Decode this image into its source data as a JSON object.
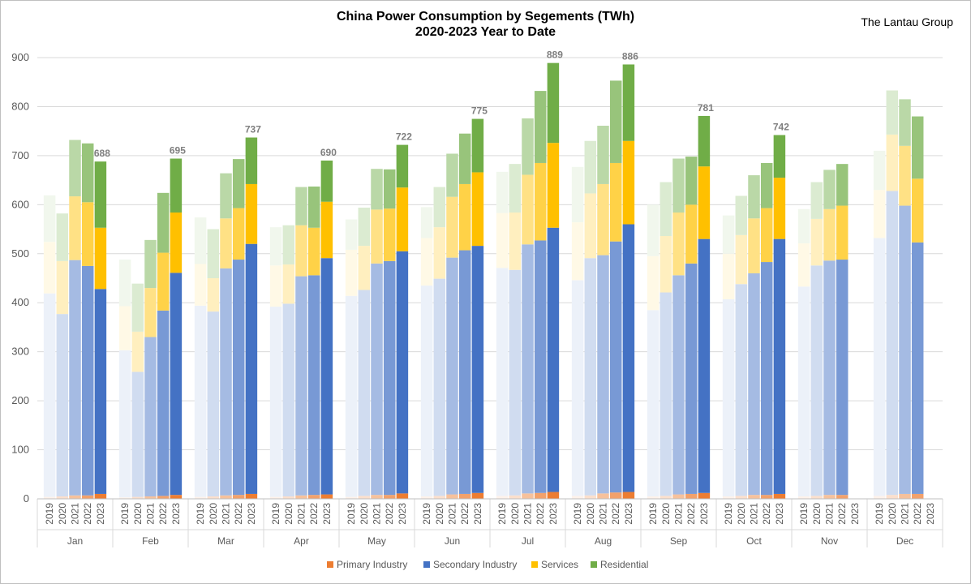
{
  "source": "The Lantau Group",
  "chart_data": {
    "type": "bar",
    "stacked": true,
    "title": "China Power Consumption by Segements (TWh)",
    "subtitle": "2020-2023 Year to Date",
    "ylim": [
      0,
      900
    ],
    "yticks": [
      "0",
      "100",
      "200",
      "300",
      "400",
      "500",
      "600",
      "700",
      "800",
      "900"
    ],
    "years": [
      "2019",
      "2020",
      "2021",
      "2022",
      "2023"
    ],
    "months": [
      "Jan",
      "Feb",
      "Mar",
      "Apr",
      "May",
      "Jun",
      "Jul",
      "Aug",
      "Sep",
      "Oct",
      "Nov",
      "Dec"
    ],
    "legend_position": "bottom",
    "series": [
      {
        "name": "Primary Industry",
        "color": "#ED7D31"
      },
      {
        "name": "Secondary Industry",
        "color": "#4472C4"
      },
      {
        "name": "Services",
        "color": "#FFC000"
      },
      {
        "name": "Residential",
        "color": "#70AD47"
      }
    ],
    "values": {
      "Jan": [
        [
          4,
          415,
          105,
          95
        ],
        [
          5,
          372,
          108,
          97
        ],
        [
          7,
          480,
          130,
          115
        ],
        [
          7,
          468,
          130,
          120
        ],
        [
          10,
          418,
          125,
          135
        ]
      ],
      "Feb": [
        [
          3,
          300,
          90,
          95
        ],
        [
          4,
          255,
          82,
          98
        ],
        [
          5,
          325,
          100,
          98
        ],
        [
          6,
          378,
          118,
          122
        ],
        [
          8,
          453,
          123,
          110
        ]
      ],
      "Mar": [
        [
          4,
          390,
          85,
          95
        ],
        [
          5,
          377,
          68,
          100
        ],
        [
          7,
          463,
          102,
          92
        ],
        [
          8,
          480,
          105,
          100
        ],
        [
          10,
          510,
          122,
          95
        ]
      ],
      "Apr": [
        [
          4,
          388,
          84,
          78
        ],
        [
          5,
          393,
          80,
          80
        ],
        [
          7,
          447,
          104,
          78
        ],
        [
          8,
          448,
          97,
          84
        ],
        [
          9,
          482,
          115,
          84
        ]
      ],
      "May": [
        [
          4,
          410,
          94,
          62
        ],
        [
          6,
          420,
          90,
          78
        ],
        [
          8,
          472,
          110,
          83
        ],
        [
          8,
          477,
          107,
          80
        ],
        [
          11,
          494,
          130,
          87
        ]
      ],
      "Jun": [
        [
          5,
          430,
          97,
          63
        ],
        [
          6,
          443,
          105,
          82
        ],
        [
          9,
          483,
          124,
          88
        ],
        [
          10,
          497,
          135,
          103
        ],
        [
          12,
          504,
          150,
          109
        ]
      ],
      "Jul": [
        [
          6,
          465,
          112,
          84
        ],
        [
          7,
          460,
          117,
          99
        ],
        [
          11,
          508,
          142,
          115
        ],
        [
          12,
          515,
          158,
          147
        ],
        [
          14,
          539,
          173,
          163
        ]
      ],
      "Aug": [
        [
          6,
          440,
          118,
          113
        ],
        [
          7,
          484,
          132,
          107
        ],
        [
          11,
          486,
          145,
          119
        ],
        [
          13,
          512,
          160,
          168
        ],
        [
          14,
          546,
          170,
          156
        ]
      ],
      "Sep": [
        [
          5,
          380,
          110,
          105
        ],
        [
          6,
          415,
          115,
          110
        ],
        [
          9,
          447,
          128,
          110
        ],
        [
          10,
          470,
          120,
          98
        ],
        [
          12,
          518,
          148,
          103
        ]
      ],
      "Oct": [
        [
          5,
          402,
          93,
          78
        ],
        [
          6,
          432,
          100,
          80
        ],
        [
          8,
          452,
          112,
          88
        ],
        [
          8,
          475,
          110,
          92
        ],
        [
          10,
          520,
          125,
          87
        ]
      ],
      "Nov": [
        [
          5,
          428,
          88,
          70
        ],
        [
          6,
          470,
          95,
          75
        ],
        [
          8,
          478,
          105,
          80
        ],
        [
          8,
          480,
          110,
          85
        ]
      ],
      "Dec": [
        [
          6,
          526,
          98,
          80
        ],
        [
          8,
          620,
          115,
          90
        ],
        [
          10,
          588,
          122,
          95
        ],
        [
          10,
          513,
          130,
          127
        ]
      ]
    },
    "totals": {
      "Jan": "688",
      "Feb": "695",
      "Mar": "737",
      "Apr": "690",
      "May": "722",
      "Jun": "775",
      "Jul": "889",
      "Aug": "886",
      "Sep": "781",
      "Oct": "742"
    }
  }
}
